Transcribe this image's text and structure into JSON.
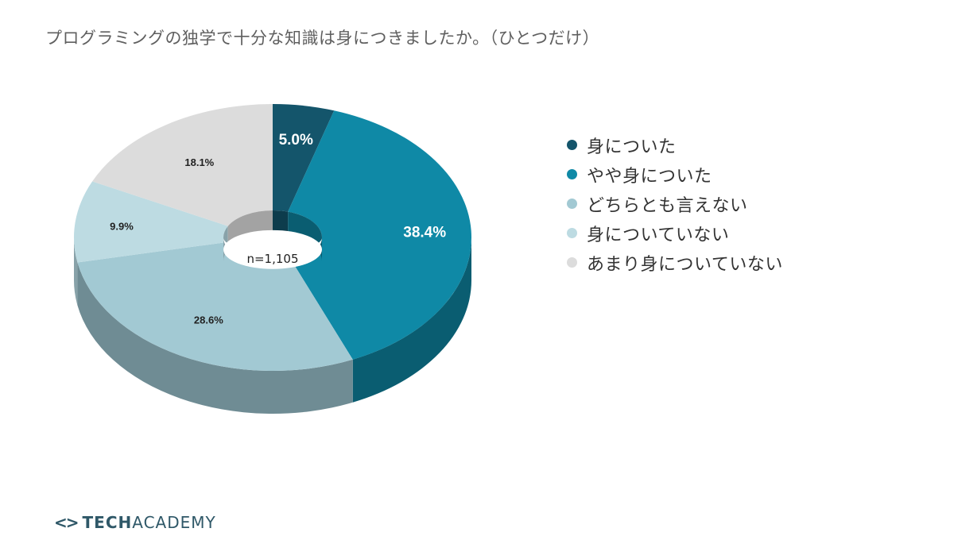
{
  "title": "プログラミングの独学で十分な知識は身につきましたか。（ひとつだけ）",
  "chart_data": {
    "type": "pie",
    "variant": "3d-donut",
    "title": "プログラミングの独学で十分な知識は身につきましたか。（ひとつだけ）",
    "center_label": "n=1,105",
    "start": "12 o'clock, clockwise",
    "categories": [
      "身についた",
      "やや身についた",
      "どちらとも言えない",
      "身についていない",
      "あまり身についていない"
    ],
    "values": [
      5.0,
      38.4,
      28.6,
      9.9,
      18.1
    ],
    "data_labels": [
      "5.0%",
      "38.4%",
      "28.6%",
      "9.9%",
      "18.1%"
    ],
    "colors": [
      "#14556b",
      "#0f89a6",
      "#a2c9d3",
      "#bddbe2",
      "#dcdcdc"
    ],
    "side_colors": [
      "#0d3c4c",
      "#0a5d71",
      "#6f8c94",
      "#88a2a9",
      "#a3a3a3"
    ],
    "label_colors": [
      "#ffffff",
      "#ffffff",
      "#222222",
      "#222222",
      "#222222"
    ],
    "legend_placement": "right"
  },
  "brand": {
    "icon": "<>",
    "name_bold": "TECH",
    "name_light": "ACADEMY"
  }
}
